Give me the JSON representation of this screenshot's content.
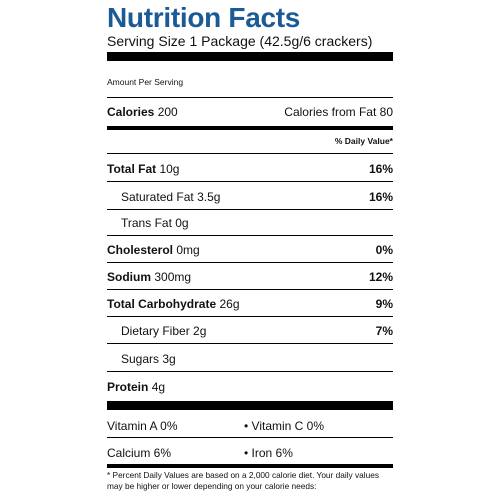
{
  "label": {
    "title": "Nutrition Facts",
    "serving_size": "Serving Size 1 Package (42.5g/6 crackers)",
    "amount_per_serving": "Amount Per Serving",
    "calories_label": "Calories",
    "calories_value": "200",
    "calories_from_fat": "Calories from Fat 80",
    "daily_value_header": "% Daily Value*",
    "nutrients": [
      {
        "name": "Total Fat",
        "amount": "10g",
        "dv": "16%"
      },
      {
        "name": "Saturated Fat",
        "amount": "3.5g",
        "dv": "16%"
      },
      {
        "name": "Trans Fat",
        "amount": "0g",
        "dv": ""
      },
      {
        "name": "Cholesterol",
        "amount": "0mg",
        "dv": "0%"
      },
      {
        "name": "Sodium",
        "amount": "300mg",
        "dv": "12%"
      },
      {
        "name": "Total Carbohydrate",
        "amount": "26g",
        "dv": "9%"
      },
      {
        "name": "Dietary Fiber",
        "amount": "2g",
        "dv": "7%"
      },
      {
        "name": "Sugars",
        "amount": "3g",
        "dv": ""
      },
      {
        "name": "Protein",
        "amount": "4g",
        "dv": ""
      }
    ],
    "vitamins": [
      {
        "left": "Vitamin A 0%",
        "right": "• Vitamin C 0%"
      },
      {
        "left": "Calcium 6%",
        "right": "• Iron 6%"
      }
    ],
    "footnote": "* Percent Daily Values are based on a 2,000 calorie diet. Your daily values may be higher or lower depending on your calorie needs:"
  }
}
